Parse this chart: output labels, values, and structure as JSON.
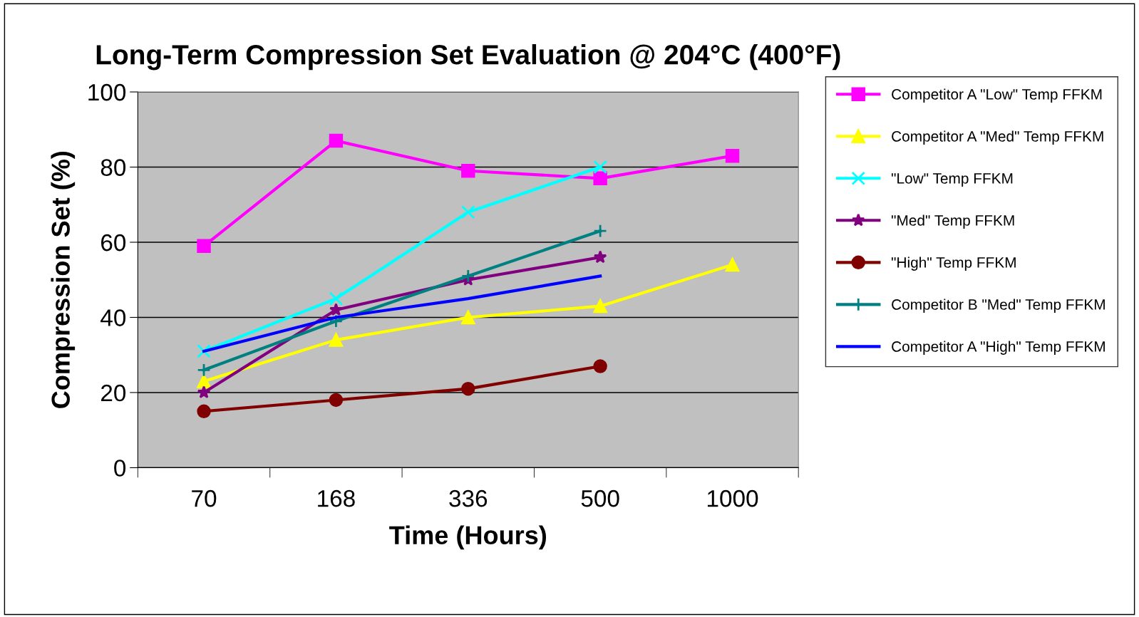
{
  "chart_data": {
    "type": "line",
    "title": "Long-Term Compression Set Evaluation @ 204°C (400°F)",
    "xlabel": "Time (Hours)",
    "ylabel": "Compression Set (%)",
    "categories": [
      "70",
      "168",
      "336",
      "500",
      "1000"
    ],
    "ylim": [
      0,
      100
    ],
    "yticks": [
      0,
      20,
      40,
      60,
      80,
      100
    ],
    "grid": "y",
    "legend": "right",
    "series": [
      {
        "name": "Competitor A \"Low\" Temp FFKM",
        "color": "#ff00ff",
        "marker": "square",
        "values": [
          59,
          87,
          79,
          77,
          83
        ]
      },
      {
        "name": "Competitor A \"Med\" Temp FFKM",
        "color": "#ffff00",
        "marker": "triangle",
        "values": [
          23,
          34,
          40,
          43,
          54
        ]
      },
      {
        "name": "\"Low\" Temp FFKM",
        "color": "#00ffff",
        "marker": "cross",
        "values": [
          31,
          45,
          68,
          80,
          null
        ]
      },
      {
        "name": "\"Med\" Temp FFKM",
        "color": "#800080",
        "marker": "star",
        "values": [
          20,
          42,
          50,
          56,
          null
        ]
      },
      {
        "name": "\"High\" Temp FFKM",
        "color": "#800000",
        "marker": "circle",
        "values": [
          15,
          18,
          21,
          27,
          null
        ]
      },
      {
        "name": "Competitor B \"Med\" Temp FFKM",
        "color": "#008080",
        "marker": "plus",
        "values": [
          26,
          39,
          51,
          63,
          null
        ]
      },
      {
        "name": "Competitor A \"High\" Temp FFKM",
        "color": "#0000ff",
        "marker": "none",
        "values": [
          31,
          40,
          45,
          51,
          null
        ]
      }
    ]
  }
}
